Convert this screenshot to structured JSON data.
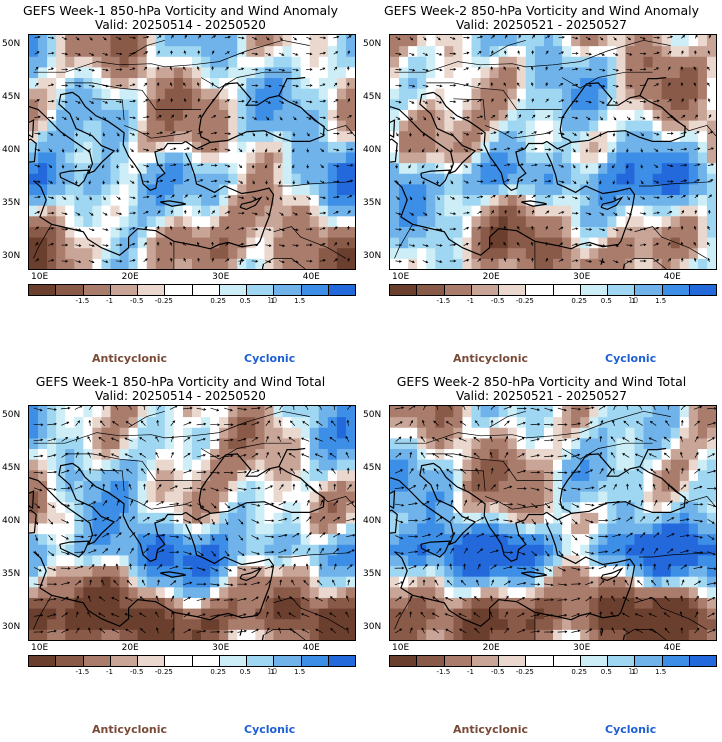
{
  "palette": [
    "#6b3f2e",
    "#8a5a49",
    "#a97c6c",
    "#c8a597",
    "#ead7ce",
    "#ffffff",
    "#ffffff",
    "#cdeef6",
    "#9fd6f2",
    "#6fb3ea",
    "#3d8ee6",
    "#2369dc"
  ],
  "legend": {
    "tick_labels": [
      "-1.5",
      "-1",
      "-0.5",
      "-0.25",
      "0.25",
      "0.5",
      "1",
      "1.5"
    ],
    "unit": "10",
    "anticyclonic": "Anticyclonic",
    "cyclonic": "Cyclonic"
  },
  "axes": {
    "lat_labels": [
      "50N",
      "45N",
      "40N",
      "35N",
      "30N"
    ],
    "lon_labels": [
      "10E",
      "20E",
      "30E",
      "40E"
    ],
    "lon_range": [
      9,
      45
    ],
    "lat_range": [
      29,
      51
    ]
  },
  "panels": [
    {
      "title": "GEFS Week-1 850-hPa Vorticity and Wind Anomaly",
      "valid": "Valid: 20250514 - 20250520"
    },
    {
      "title": "GEFS Week-2 850-hPa Vorticity and Wind Anomaly",
      "valid": "Valid: 20250521 - 20250527"
    },
    {
      "title": "GEFS Week-1 850-hPa Vorticity and Wind Total",
      "valid": "Valid: 20250514 - 20250520"
    },
    {
      "title": "GEFS Week-2 850-hPa Vorticity and Wind Total",
      "valid": "Valid: 20250521 - 20250527"
    }
  ]
}
